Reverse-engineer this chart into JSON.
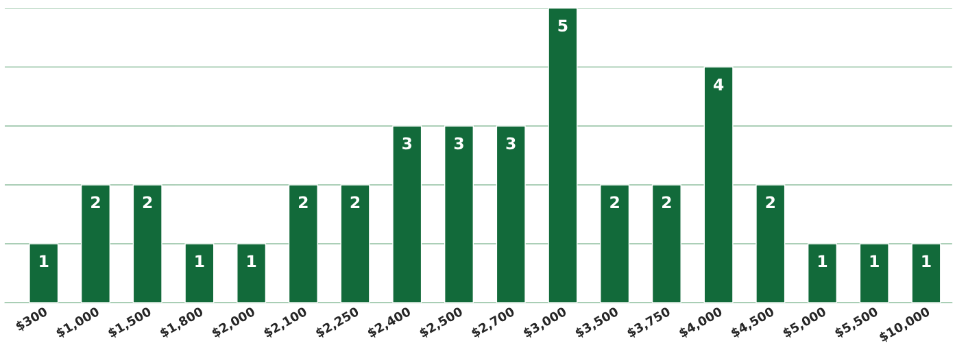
{
  "chart_data": {
    "type": "bar",
    "categories": [
      "$300",
      "$1,000",
      "$1,500",
      "$1,800",
      "$2,000",
      "$2,100",
      "$2,250",
      "$2,400",
      "$2,500",
      "$2,700",
      "$3,000",
      "$3,500",
      "$3,750",
      "$4,000",
      "$4,500",
      "$5,000",
      "$5,500",
      "$10,000"
    ],
    "values": [
      1,
      2,
      2,
      1,
      1,
      2,
      2,
      3,
      3,
      3,
      5,
      2,
      2,
      4,
      2,
      1,
      1,
      1
    ],
    "color": "#126a3a",
    "ylim": [
      0,
      5
    ],
    "yticks": [
      {
        "value": 0,
        "label": null
      },
      {
        "value": 1,
        "label": null
      },
      {
        "value": 2,
        "label": null
      },
      {
        "value": 3,
        "label": null
      },
      {
        "value": 4,
        "label": null
      },
      {
        "value": 5,
        "label": null
      }
    ],
    "grid": "y",
    "tick_labels": "x",
    "data_labels": true
  }
}
